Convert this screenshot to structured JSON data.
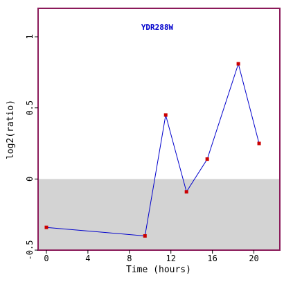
{
  "chart_data": {
    "type": "line",
    "title": "YDR288W",
    "xlabel": "Time (hours)",
    "ylabel": "log2(ratio)",
    "xlim": [
      -0.8,
      22.5
    ],
    "ylim": [
      -0.5,
      1.2
    ],
    "x_ticks": [
      0,
      4,
      8,
      12,
      16,
      20
    ],
    "x_tick_labels": [
      "0",
      "4",
      "8",
      "12",
      "16",
      "20"
    ],
    "y_ticks": [
      -0.5,
      0,
      0.5,
      1
    ],
    "y_tick_labels": [
      "-0.5",
      "0",
      "0.5",
      "1"
    ],
    "shaded_region": {
      "y_from": -0.5,
      "y_to": 0
    },
    "series": [
      {
        "x": [
          0,
          9.5,
          11.5,
          13.5,
          15.5,
          18.5,
          20.5
        ],
        "y": [
          -0.34,
          -0.4,
          0.45,
          -0.09,
          0.14,
          0.81,
          0.25
        ]
      }
    ],
    "colors": {
      "frame": "#8b1a5a",
      "line": "#0000cc",
      "marker": "#cc0000",
      "shade": "#d3d3d3",
      "title": "#0000cc",
      "text": "#000000"
    }
  }
}
